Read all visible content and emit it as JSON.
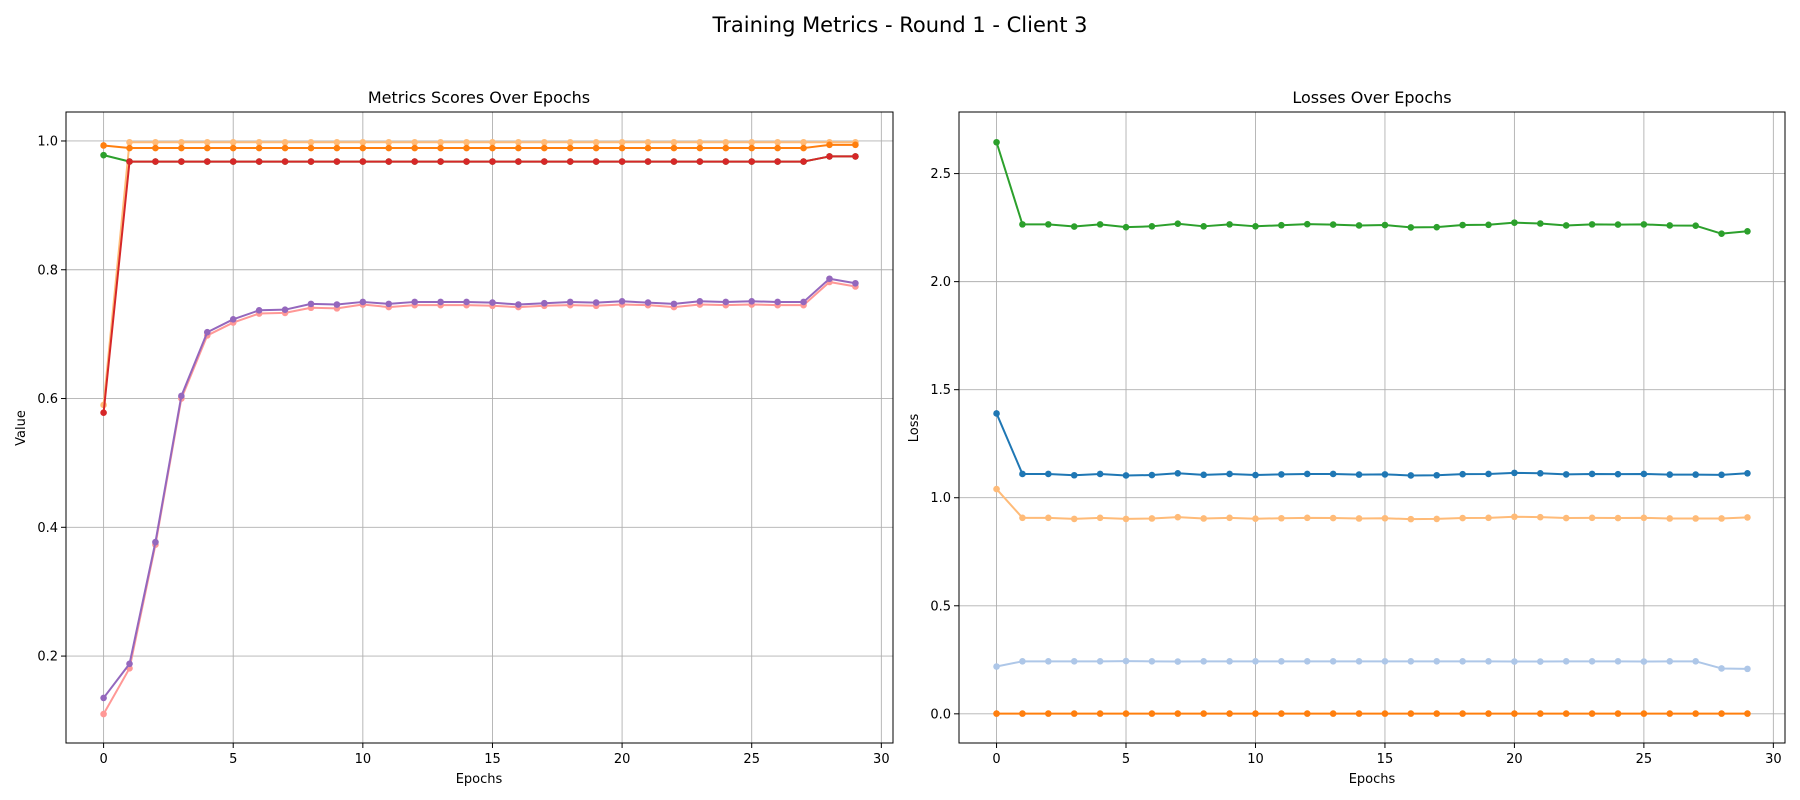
{
  "figure": {
    "suptitle": "Training Metrics - Round 1 - Client 3"
  },
  "chart_data": [
    {
      "type": "line",
      "title": "Metrics Scores Over Epochs",
      "xlabel": "Epochs",
      "ylabel": "Value",
      "xlim": [
        -1.45,
        30.45
      ],
      "ylim": [
        0.065,
        1.045
      ],
      "xticks": [
        0,
        5,
        10,
        15,
        20,
        25,
        30
      ],
      "yticks": [
        0.2,
        0.4,
        0.6,
        0.8,
        1.0
      ],
      "ytick_labels": [
        "0.2",
        "0.4",
        "0.6",
        "0.8",
        "1.0"
      ],
      "grid": true,
      "x": [
        0,
        1,
        2,
        3,
        4,
        5,
        6,
        7,
        8,
        9,
        10,
        11,
        12,
        13,
        14,
        15,
        16,
        17,
        18,
        19,
        20,
        21,
        22,
        23,
        24,
        25,
        26,
        27,
        28,
        29
      ],
      "series": [
        {
          "color": "#ffbb78",
          "values": [
            0.59,
            0.998,
            0.998,
            0.998,
            0.998,
            0.998,
            0.998,
            0.998,
            0.998,
            0.998,
            0.998,
            0.998,
            0.998,
            0.998,
            0.998,
            0.998,
            0.998,
            0.998,
            0.998,
            0.998,
            0.998,
            0.998,
            0.998,
            0.998,
            0.998,
            0.998,
            0.998,
            0.998,
            0.998,
            0.998
          ]
        },
        {
          "color": "#ff7f0e",
          "values": [
            0.993,
            0.989,
            0.989,
            0.989,
            0.989,
            0.989,
            0.989,
            0.989,
            0.989,
            0.989,
            0.989,
            0.989,
            0.989,
            0.989,
            0.989,
            0.989,
            0.989,
            0.989,
            0.989,
            0.989,
            0.989,
            0.989,
            0.989,
            0.989,
            0.989,
            0.989,
            0.989,
            0.989,
            0.994,
            0.994
          ]
        },
        {
          "color": "#2ca02c",
          "values": [
            0.978,
            0.968,
            0.968,
            0.968,
            0.968,
            0.968,
            0.968,
            0.968,
            0.968,
            0.968,
            0.968,
            0.968,
            0.968,
            0.968,
            0.968,
            0.968,
            0.968,
            0.968,
            0.968,
            0.968,
            0.968,
            0.968,
            0.968,
            0.968,
            0.968,
            0.968,
            0.968,
            0.968,
            0.976,
            0.976
          ]
        },
        {
          "color": "#d62728",
          "values": [
            0.578,
            0.968,
            0.968,
            0.968,
            0.968,
            0.968,
            0.968,
            0.968,
            0.968,
            0.968,
            0.968,
            0.968,
            0.968,
            0.968,
            0.968,
            0.968,
            0.968,
            0.968,
            0.968,
            0.968,
            0.968,
            0.968,
            0.968,
            0.968,
            0.968,
            0.968,
            0.968,
            0.968,
            0.976,
            0.976
          ]
        },
        {
          "color": "#ff9896",
          "values": [
            0.11,
            0.181,
            0.373,
            0.6,
            0.698,
            0.718,
            0.732,
            0.733,
            0.741,
            0.74,
            0.746,
            0.742,
            0.745,
            0.745,
            0.745,
            0.744,
            0.742,
            0.744,
            0.745,
            0.744,
            0.746,
            0.745,
            0.742,
            0.746,
            0.745,
            0.746,
            0.745,
            0.745,
            0.781,
            0.774
          ]
        },
        {
          "color": "#9467bd",
          "values": [
            0.135,
            0.188,
            0.377,
            0.604,
            0.703,
            0.723,
            0.737,
            0.738,
            0.747,
            0.746,
            0.75,
            0.747,
            0.75,
            0.75,
            0.75,
            0.749,
            0.746,
            0.748,
            0.75,
            0.749,
            0.751,
            0.749,
            0.747,
            0.751,
            0.75,
            0.751,
            0.75,
            0.75,
            0.786,
            0.779
          ]
        }
      ]
    },
    {
      "type": "line",
      "title": "Losses Over Epochs",
      "xlabel": "Epochs",
      "ylabel": "Loss",
      "xlim": [
        -1.45,
        30.45
      ],
      "ylim": [
        -0.135,
        2.785
      ],
      "xticks": [
        0,
        5,
        10,
        15,
        20,
        25,
        30
      ],
      "yticks": [
        0.0,
        0.5,
        1.0,
        1.5,
        2.0,
        2.5
      ],
      "ytick_labels": [
        "0.0",
        "0.5",
        "1.0",
        "1.5",
        "2.0",
        "2.5"
      ],
      "grid": true,
      "x": [
        0,
        1,
        2,
        3,
        4,
        5,
        6,
        7,
        8,
        9,
        10,
        11,
        12,
        13,
        14,
        15,
        16,
        17,
        18,
        19,
        20,
        21,
        22,
        23,
        24,
        25,
        26,
        27,
        28,
        29
      ],
      "series": [
        {
          "color": "#2ca02c",
          "values": [
            2.645,
            2.265,
            2.265,
            2.255,
            2.265,
            2.252,
            2.256,
            2.268,
            2.256,
            2.265,
            2.256,
            2.261,
            2.266,
            2.264,
            2.26,
            2.262,
            2.251,
            2.252,
            2.262,
            2.263,
            2.273,
            2.269,
            2.26,
            2.265,
            2.264,
            2.265,
            2.26,
            2.259,
            2.222,
            2.233
          ]
        },
        {
          "color": "#1f77b4",
          "values": [
            1.39,
            1.11,
            1.11,
            1.104,
            1.11,
            1.103,
            1.105,
            1.113,
            1.106,
            1.11,
            1.105,
            1.108,
            1.11,
            1.11,
            1.107,
            1.108,
            1.103,
            1.104,
            1.109,
            1.11,
            1.115,
            1.113,
            1.108,
            1.11,
            1.109,
            1.11,
            1.107,
            1.107,
            1.106,
            1.113
          ]
        },
        {
          "color": "#ffbb78",
          "values": [
            1.04,
            0.907,
            0.907,
            0.902,
            0.907,
            0.902,
            0.904,
            0.91,
            0.904,
            0.907,
            0.903,
            0.905,
            0.907,
            0.906,
            0.904,
            0.905,
            0.901,
            0.902,
            0.906,
            0.907,
            0.912,
            0.91,
            0.906,
            0.907,
            0.906,
            0.907,
            0.904,
            0.904,
            0.904,
            0.909
          ]
        },
        {
          "color": "#aec7e8",
          "values": [
            0.219,
            0.243,
            0.243,
            0.243,
            0.243,
            0.244,
            0.243,
            0.242,
            0.243,
            0.243,
            0.243,
            0.243,
            0.243,
            0.243,
            0.243,
            0.243,
            0.243,
            0.243,
            0.243,
            0.243,
            0.242,
            0.242,
            0.243,
            0.243,
            0.243,
            0.242,
            0.243,
            0.243,
            0.21,
            0.208
          ]
        },
        {
          "color": "#ff7f0e",
          "values": [
            0.001,
            0.001,
            0.001,
            0.001,
            0.001,
            0.001,
            0.001,
            0.001,
            0.001,
            0.001,
            0.001,
            0.001,
            0.001,
            0.001,
            0.001,
            0.001,
            0.001,
            0.001,
            0.001,
            0.001,
            0.001,
            0.001,
            0.001,
            0.001,
            0.001,
            0.001,
            0.001,
            0.001,
            0.001,
            0.001
          ]
        }
      ]
    }
  ]
}
